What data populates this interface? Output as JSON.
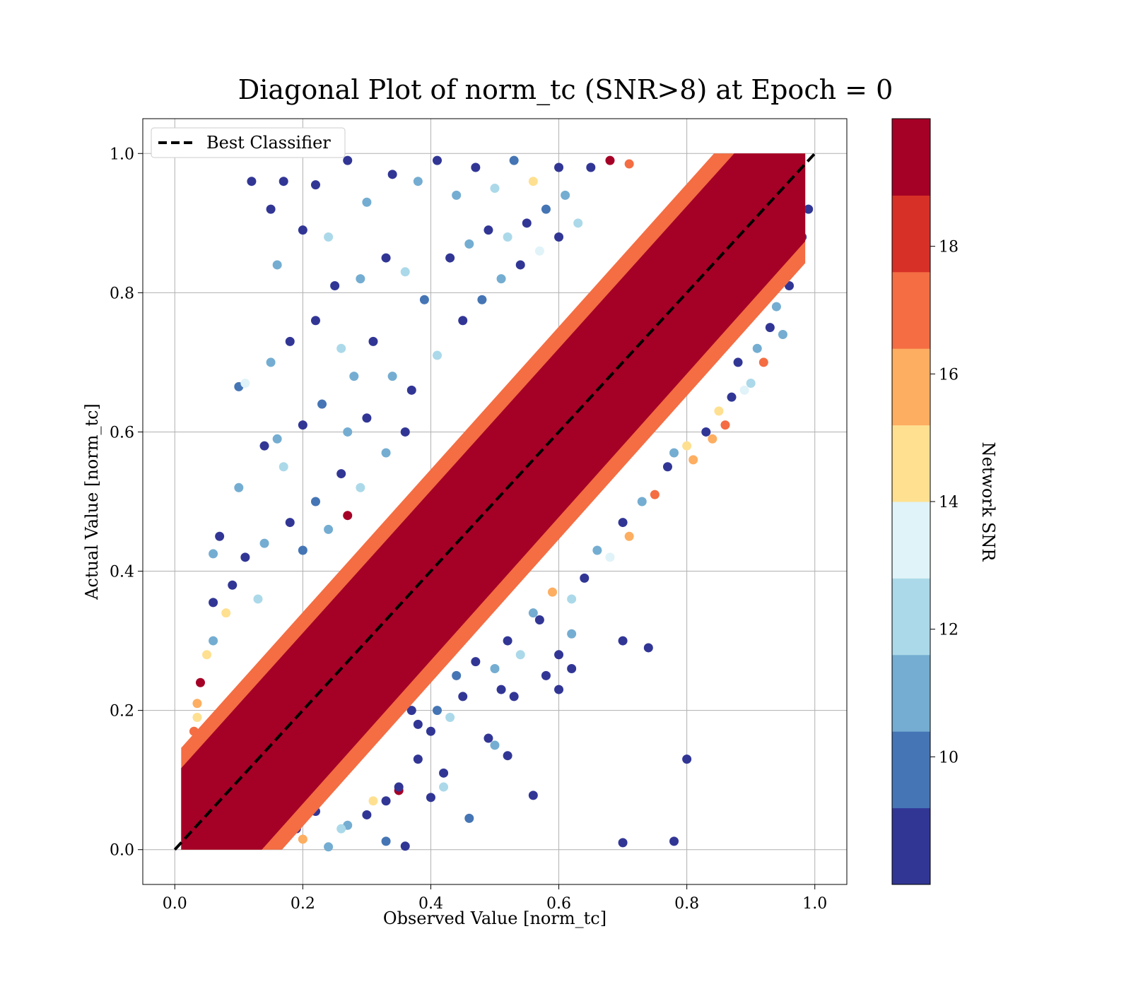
{
  "chart_data": {
    "type": "scatter",
    "title": "Diagonal Plot of norm_tc (SNR>8) at Epoch = 0",
    "xlabel": "Observed Value [norm_tc]",
    "ylabel": "Actual Value [norm_tc]",
    "xlim": [
      -0.05,
      1.05
    ],
    "ylim": [
      -0.05,
      1.05
    ],
    "x_ticks": [
      0.0,
      0.2,
      0.4,
      0.6,
      0.8,
      1.0
    ],
    "y_ticks": [
      0.0,
      0.2,
      0.4,
      0.6,
      0.8,
      1.0
    ],
    "x_tick_labels": [
      "0.0",
      "0.2",
      "0.4",
      "0.6",
      "0.8",
      "1.0"
    ],
    "y_tick_labels": [
      "0.0",
      "0.2",
      "0.4",
      "0.6",
      "0.8",
      "1.0"
    ],
    "grid": true,
    "legend": {
      "placement": "top-left",
      "entries": [
        "Best Classifier"
      ]
    },
    "reference_line": {
      "name": "Best Classifier",
      "x": [
        0.0,
        1.0
      ],
      "y": [
        0.0,
        1.0
      ],
      "color": "#000000",
      "style": "dashed"
    },
    "colorbar": {
      "label": "Network SNR",
      "min": 8,
      "max": 20,
      "ticks": [
        10,
        12,
        14,
        16,
        18
      ],
      "tick_labels": [
        "10",
        "12",
        "14",
        "16",
        "18"
      ],
      "colors": [
        "#313695",
        "#4575b4",
        "#74add1",
        "#abd9e9",
        "#e0f3f8",
        "#fee090",
        "#fdae61",
        "#f46d43",
        "#d73027",
        "#a50026"
      ]
    },
    "dense_band": {
      "center": "y = x",
      "half_width": 0.09,
      "snr": 19.5,
      "color": "#a50026"
    },
    "points": [
      {
        "x": 0.12,
        "y": 0.96,
        "snr": 8.5
      },
      {
        "x": 0.17,
        "y": 0.96,
        "snr": 8.5
      },
      {
        "x": 0.22,
        "y": 0.955,
        "snr": 8.5
      },
      {
        "x": 0.15,
        "y": 0.92,
        "snr": 9.2
      },
      {
        "x": 0.2,
        "y": 0.89,
        "snr": 8.5
      },
      {
        "x": 0.24,
        "y": 0.88,
        "snr": 12.5
      },
      {
        "x": 0.27,
        "y": 0.99,
        "snr": 8.5
      },
      {
        "x": 0.3,
        "y": 0.93,
        "snr": 10.5
      },
      {
        "x": 0.34,
        "y": 0.97,
        "snr": 8.5
      },
      {
        "x": 0.38,
        "y": 0.96,
        "snr": 11.5
      },
      {
        "x": 0.41,
        "y": 0.99,
        "snr": 8.5
      },
      {
        "x": 0.44,
        "y": 0.94,
        "snr": 10.5
      },
      {
        "x": 0.47,
        "y": 0.98,
        "snr": 8.5
      },
      {
        "x": 0.5,
        "y": 0.95,
        "snr": 12.5
      },
      {
        "x": 0.53,
        "y": 0.99,
        "snr": 9.5
      },
      {
        "x": 0.56,
        "y": 0.96,
        "snr": 14.5
      },
      {
        "x": 0.6,
        "y": 0.98,
        "snr": 8.5
      },
      {
        "x": 0.61,
        "y": 0.94,
        "snr": 11.0
      },
      {
        "x": 0.65,
        "y": 0.98,
        "snr": 8.5
      },
      {
        "x": 0.68,
        "y": 0.99,
        "snr": 19.5
      },
      {
        "x": 0.71,
        "y": 0.985,
        "snr": 17.5
      },
      {
        "x": 0.16,
        "y": 0.84,
        "snr": 11.5
      },
      {
        "x": 0.25,
        "y": 0.81,
        "snr": 8.5
      },
      {
        "x": 0.29,
        "y": 0.82,
        "snr": 10.5
      },
      {
        "x": 0.33,
        "y": 0.85,
        "snr": 8.5
      },
      {
        "x": 0.36,
        "y": 0.83,
        "snr": 12.0
      },
      {
        "x": 0.39,
        "y": 0.79,
        "snr": 9.5
      },
      {
        "x": 0.43,
        "y": 0.85,
        "snr": 8.5
      },
      {
        "x": 0.46,
        "y": 0.87,
        "snr": 10.5
      },
      {
        "x": 0.49,
        "y": 0.89,
        "snr": 8.5
      },
      {
        "x": 0.52,
        "y": 0.88,
        "snr": 12.5
      },
      {
        "x": 0.55,
        "y": 0.9,
        "snr": 8.5
      },
      {
        "x": 0.58,
        "y": 0.92,
        "snr": 10.0
      },
      {
        "x": 0.18,
        "y": 0.73,
        "snr": 8.5
      },
      {
        "x": 0.15,
        "y": 0.7,
        "snr": 10.5
      },
      {
        "x": 0.1,
        "y": 0.665,
        "snr": 10.0
      },
      {
        "x": 0.11,
        "y": 0.67,
        "snr": 13.5
      },
      {
        "x": 0.22,
        "y": 0.76,
        "snr": 8.5
      },
      {
        "x": 0.26,
        "y": 0.72,
        "snr": 12.0
      },
      {
        "x": 0.28,
        "y": 0.68,
        "snr": 10.5
      },
      {
        "x": 0.31,
        "y": 0.73,
        "snr": 8.5
      },
      {
        "x": 0.34,
        "y": 0.68,
        "snr": 11.5
      },
      {
        "x": 0.37,
        "y": 0.66,
        "snr": 8.5
      },
      {
        "x": 0.41,
        "y": 0.71,
        "snr": 12.5
      },
      {
        "x": 0.45,
        "y": 0.76,
        "snr": 8.5
      },
      {
        "x": 0.48,
        "y": 0.79,
        "snr": 9.5
      },
      {
        "x": 0.51,
        "y": 0.82,
        "snr": 11.0
      },
      {
        "x": 0.54,
        "y": 0.84,
        "snr": 8.5
      },
      {
        "x": 0.57,
        "y": 0.86,
        "snr": 13.5
      },
      {
        "x": 0.6,
        "y": 0.88,
        "snr": 8.5
      },
      {
        "x": 0.63,
        "y": 0.9,
        "snr": 12.5
      },
      {
        "x": 0.14,
        "y": 0.58,
        "snr": 8.5
      },
      {
        "x": 0.16,
        "y": 0.59,
        "snr": 11.0
      },
      {
        "x": 0.2,
        "y": 0.61,
        "snr": 8.5
      },
      {
        "x": 0.23,
        "y": 0.64,
        "snr": 9.5
      },
      {
        "x": 0.27,
        "y": 0.6,
        "snr": 11.5
      },
      {
        "x": 0.3,
        "y": 0.62,
        "snr": 8.5
      },
      {
        "x": 0.33,
        "y": 0.57,
        "snr": 10.5
      },
      {
        "x": 0.36,
        "y": 0.6,
        "snr": 8.5
      },
      {
        "x": 0.1,
        "y": 0.52,
        "snr": 11.5
      },
      {
        "x": 0.17,
        "y": 0.55,
        "snr": 12.5
      },
      {
        "x": 0.22,
        "y": 0.5,
        "snr": 9.5
      },
      {
        "x": 0.26,
        "y": 0.54,
        "snr": 8.5
      },
      {
        "x": 0.29,
        "y": 0.52,
        "snr": 12.5
      },
      {
        "x": 0.07,
        "y": 0.45,
        "snr": 8.5
      },
      {
        "x": 0.06,
        "y": 0.425,
        "snr": 10.5
      },
      {
        "x": 0.11,
        "y": 0.42,
        "snr": 8.5
      },
      {
        "x": 0.14,
        "y": 0.44,
        "snr": 11.5
      },
      {
        "x": 0.18,
        "y": 0.47,
        "snr": 8.5
      },
      {
        "x": 0.2,
        "y": 0.43,
        "snr": 9.5
      },
      {
        "x": 0.24,
        "y": 0.46,
        "snr": 11.0
      },
      {
        "x": 0.27,
        "y": 0.48,
        "snr": 19.5
      },
      {
        "x": 0.09,
        "y": 0.38,
        "snr": 8.5
      },
      {
        "x": 0.06,
        "y": 0.355,
        "snr": 8.5
      },
      {
        "x": 0.13,
        "y": 0.36,
        "snr": 12.5
      },
      {
        "x": 0.08,
        "y": 0.34,
        "snr": 14.0
      },
      {
        "x": 0.05,
        "y": 0.28,
        "snr": 15.0
      },
      {
        "x": 0.06,
        "y": 0.3,
        "snr": 11.5
      },
      {
        "x": 0.04,
        "y": 0.24,
        "snr": 19.0
      },
      {
        "x": 0.035,
        "y": 0.21,
        "snr": 15.5
      },
      {
        "x": 0.03,
        "y": 0.17,
        "snr": 16.5
      },
      {
        "x": 0.02,
        "y": 0.13,
        "snr": 17.5
      },
      {
        "x": 0.035,
        "y": 0.19,
        "snr": 14.5
      },
      {
        "x": 0.7,
        "y": 0.3,
        "snr": 8.5
      },
      {
        "x": 0.74,
        "y": 0.29,
        "snr": 8.5
      },
      {
        "x": 0.8,
        "y": 0.13,
        "snr": 8.5
      },
      {
        "x": 0.7,
        "y": 0.01,
        "snr": 8.5
      },
      {
        "x": 0.78,
        "y": 0.012,
        "snr": 8.5
      },
      {
        "x": 0.56,
        "y": 0.078,
        "snr": 8.5
      },
      {
        "x": 0.62,
        "y": 0.31,
        "snr": 11.0
      },
      {
        "x": 0.6,
        "y": 0.28,
        "snr": 8.5
      },
      {
        "x": 0.62,
        "y": 0.26,
        "snr": 8.5
      },
      {
        "x": 0.58,
        "y": 0.25,
        "snr": 8.5
      },
      {
        "x": 0.6,
        "y": 0.23,
        "snr": 8.5
      },
      {
        "x": 0.51,
        "y": 0.23,
        "snr": 8.5
      },
      {
        "x": 0.53,
        "y": 0.22,
        "snr": 8.5
      },
      {
        "x": 0.49,
        "y": 0.16,
        "snr": 8.5
      },
      {
        "x": 0.5,
        "y": 0.15,
        "snr": 11.5
      },
      {
        "x": 0.52,
        "y": 0.135,
        "snr": 8.5
      },
      {
        "x": 0.46,
        "y": 0.045,
        "snr": 10.0
      },
      {
        "x": 0.42,
        "y": 0.11,
        "snr": 8.5
      },
      {
        "x": 0.42,
        "y": 0.09,
        "snr": 12.0
      },
      {
        "x": 0.37,
        "y": 0.2,
        "snr": 8.5
      },
      {
        "x": 0.41,
        "y": 0.2,
        "snr": 9.5
      },
      {
        "x": 0.4,
        "y": 0.17,
        "snr": 8.5
      },
      {
        "x": 0.38,
        "y": 0.18,
        "snr": 8.5
      },
      {
        "x": 0.35,
        "y": 0.085,
        "snr": 19.5
      },
      {
        "x": 0.35,
        "y": 0.09,
        "snr": 8.5
      },
      {
        "x": 0.4,
        "y": 0.075,
        "snr": 8.5
      },
      {
        "x": 0.33,
        "y": 0.07,
        "snr": 8.5
      },
      {
        "x": 0.36,
        "y": 0.005,
        "snr": 8.5
      },
      {
        "x": 0.33,
        "y": 0.012,
        "snr": 10.0
      },
      {
        "x": 0.24,
        "y": 0.004,
        "snr": 10.5
      },
      {
        "x": 0.3,
        "y": 0.05,
        "snr": 8.5
      },
      {
        "x": 0.27,
        "y": 0.035,
        "snr": 11.0
      },
      {
        "x": 0.22,
        "y": 0.055,
        "snr": 8.5
      },
      {
        "x": 0.59,
        "y": 0.37,
        "snr": 16.0
      },
      {
        "x": 0.56,
        "y": 0.34,
        "snr": 11.5
      },
      {
        "x": 0.52,
        "y": 0.3,
        "snr": 9.0
      },
      {
        "x": 0.54,
        "y": 0.28,
        "snr": 12.5
      },
      {
        "x": 0.47,
        "y": 0.27,
        "snr": 8.5
      },
      {
        "x": 0.44,
        "y": 0.25,
        "snr": 10.0
      },
      {
        "x": 0.45,
        "y": 0.22,
        "snr": 8.5
      },
      {
        "x": 0.64,
        "y": 0.39,
        "snr": 8.5
      },
      {
        "x": 0.66,
        "y": 0.43,
        "snr": 11.5
      },
      {
        "x": 0.7,
        "y": 0.47,
        "snr": 8.5
      },
      {
        "x": 0.73,
        "y": 0.5,
        "snr": 10.5
      },
      {
        "x": 0.75,
        "y": 0.51,
        "snr": 16.5
      },
      {
        "x": 0.77,
        "y": 0.55,
        "snr": 8.5
      },
      {
        "x": 0.8,
        "y": 0.58,
        "snr": 15.0
      },
      {
        "x": 0.78,
        "y": 0.57,
        "snr": 11.0
      },
      {
        "x": 0.83,
        "y": 0.6,
        "snr": 8.5
      },
      {
        "x": 0.85,
        "y": 0.63,
        "snr": 14.5
      },
      {
        "x": 0.87,
        "y": 0.65,
        "snr": 8.5
      },
      {
        "x": 0.9,
        "y": 0.67,
        "snr": 12.5
      },
      {
        "x": 0.88,
        "y": 0.7,
        "snr": 8.5
      },
      {
        "x": 0.91,
        "y": 0.72,
        "snr": 11.5
      },
      {
        "x": 0.93,
        "y": 0.75,
        "snr": 8.5
      },
      {
        "x": 0.94,
        "y": 0.78,
        "snr": 10.5
      },
      {
        "x": 0.96,
        "y": 0.81,
        "snr": 8.5
      },
      {
        "x": 0.97,
        "y": 0.84,
        "snr": 12.0
      },
      {
        "x": 0.98,
        "y": 0.88,
        "snr": 9.0
      },
      {
        "x": 0.99,
        "y": 0.92,
        "snr": 8.5
      },
      {
        "x": 0.86,
        "y": 0.61,
        "snr": 17.5
      },
      {
        "x": 0.81,
        "y": 0.56,
        "snr": 16.0
      },
      {
        "x": 0.84,
        "y": 0.59,
        "snr": 15.5
      },
      {
        "x": 0.89,
        "y": 0.66,
        "snr": 13.5
      },
      {
        "x": 0.92,
        "y": 0.7,
        "snr": 16.5
      },
      {
        "x": 0.95,
        "y": 0.74,
        "snr": 11.0
      },
      {
        "x": 0.71,
        "y": 0.45,
        "snr": 15.5
      },
      {
        "x": 0.68,
        "y": 0.42,
        "snr": 13.0
      },
      {
        "x": 0.62,
        "y": 0.36,
        "snr": 12.5
      },
      {
        "x": 0.57,
        "y": 0.33,
        "snr": 8.5
      },
      {
        "x": 0.5,
        "y": 0.26,
        "snr": 11.0
      },
      {
        "x": 0.43,
        "y": 0.19,
        "snr": 12.5
      },
      {
        "x": 0.38,
        "y": 0.13,
        "snr": 8.5
      },
      {
        "x": 0.31,
        "y": 0.07,
        "snr": 14.0
      },
      {
        "x": 0.26,
        "y": 0.03,
        "snr": 12.5
      },
      {
        "x": 0.2,
        "y": 0.015,
        "snr": 16.0
      },
      {
        "x": 0.16,
        "y": 0.01,
        "snr": 13.5
      },
      {
        "x": 0.19,
        "y": 0.03,
        "snr": 8.5
      }
    ]
  }
}
